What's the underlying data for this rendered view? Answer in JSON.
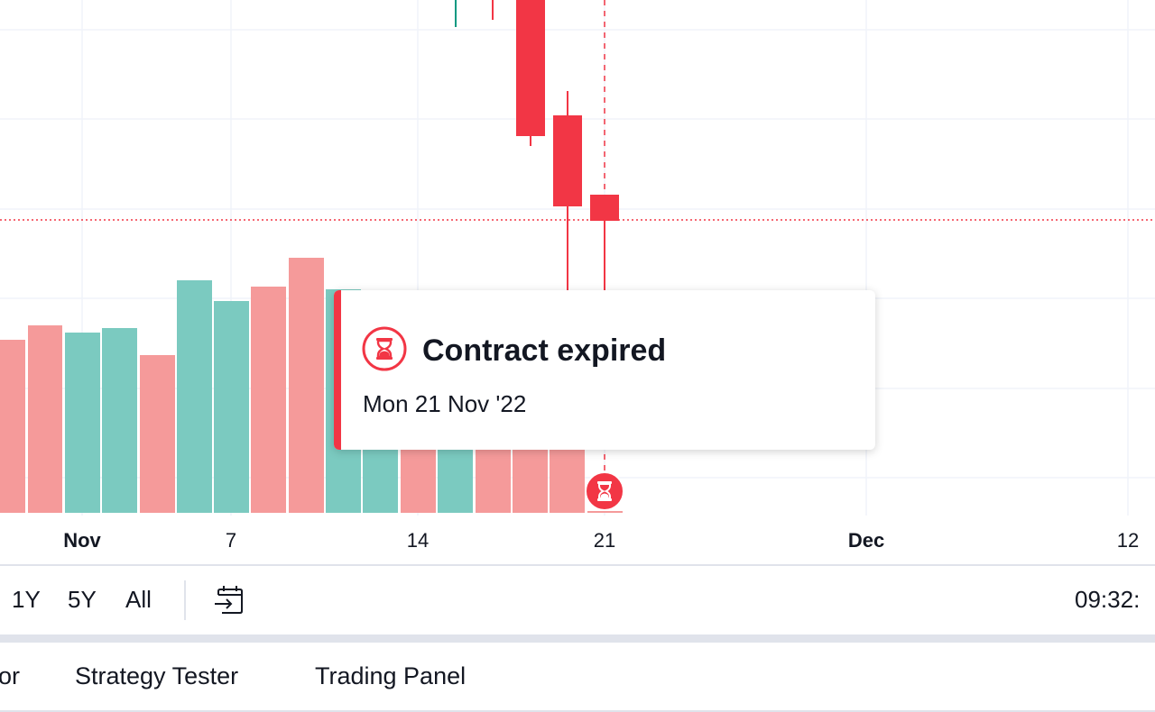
{
  "chart": {
    "time_axis_ticks": [
      {
        "label": "Nov",
        "bold": true
      },
      {
        "label": "7",
        "bold": false
      },
      {
        "label": "14",
        "bold": false
      },
      {
        "label": "21",
        "bold": false
      },
      {
        "label": "Dec",
        "bold": true
      },
      {
        "label": "12",
        "bold": false
      }
    ],
    "colors": {
      "up": "#089981",
      "down": "#f23645",
      "volume_up": "#7bcac0",
      "volume_down": "#f59a9a",
      "grid": "#f0f3fa"
    }
  },
  "tooltip": {
    "title": "Contract expired",
    "date": "Mon 21 Nov '22",
    "icon": "hourglass-icon",
    "accent": "#f23645"
  },
  "expiry_marker": {
    "icon": "hourglass-icon"
  },
  "range_bar": {
    "buttons": [
      "1Y",
      "5Y",
      "All"
    ],
    "goto_icon": "calendar-goto-icon",
    "clock": "09:32:"
  },
  "bottom_tabs": {
    "tab_partial": "or",
    "tab_strategy": "Strategy Tester",
    "tab_trading": "Trading Panel"
  }
}
